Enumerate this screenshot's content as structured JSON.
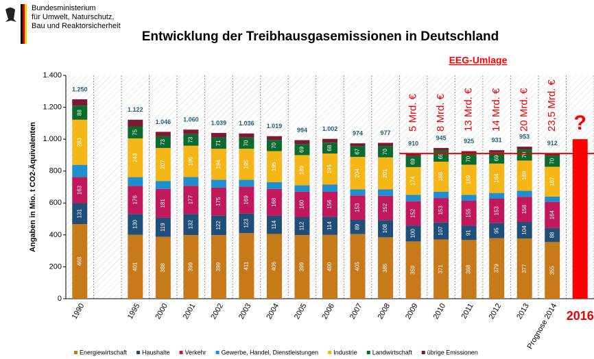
{
  "header": {
    "lines": [
      "Bundesministerium",
      "für Umwelt, Naturschutz,",
      "Bau und Reaktorsicherheit"
    ]
  },
  "chart_data": {
    "type": "stacked_bar",
    "title": "Entwicklung  der Treibhausgasemissionen in Deutschland",
    "y_label": "Angaben in Mio. t CO2-Äquivalenten",
    "annotation": "EEG-Umlage",
    "eeg_labels": [
      "5 Mrd. €",
      "8 Mrd. €",
      "13 Mrd. €",
      "14 Mrd. €",
      "20 Mrd. €",
      "23,5 Mrd. €"
    ],
    "categories": [
      "1990",
      null,
      "1995",
      "2000",
      "2001",
      "2002",
      "2003",
      "2004",
      "2005",
      "2006",
      "2007",
      "2008",
      "2009",
      "2010",
      "2011",
      "2012",
      "2013",
      "Prognose 2014",
      "2016"
    ],
    "series": [
      {
        "name": "Energiewirtschaft",
        "color": "#c77a1a",
        "labels": true,
        "values": [
          468,
          null,
          401,
          388,
          399,
          399,
          411,
          406,
          399,
          400,
          405,
          385,
          359,
          371,
          368,
          379,
          377,
          355,
          null
        ]
      },
      {
        "name": "Haushalte",
        "color": "#1f4e79",
        "labels": true,
        "values": [
          131,
          null,
          130,
          119,
          132,
          122,
          123,
          114,
          112,
          114,
          89,
          108,
          100,
          107,
          91,
          95,
          104,
          88,
          null
        ]
      },
      {
        "name": "Verkehr",
        "color": "#c0185a",
        "labels": true,
        "values": [
          163,
          null,
          176,
          181,
          177,
          175,
          169,
          168,
          160,
          156,
          153,
          152,
          152,
          153,
          155,
          153,
          158,
          164,
          null
        ]
      },
      {
        "name": "Gewerbe, Handel, Dienstleistungen",
        "color": "#1f8fcf",
        "labels": false,
        "values": [
          77,
          null,
          55,
          50,
          55,
          50,
          42,
          42,
          40,
          45,
          38,
          40,
          40,
          40,
          37,
          36,
          38,
          33,
          null
        ]
      },
      {
        "name": "Industrie",
        "color": "#f5b617",
        "labels": true,
        "values": [
          283,
          null,
          243,
          207,
          196,
          194,
          195,
          195,
          189,
          195,
          204,
          201,
          174,
          188,
          189,
          184,
          189,
          187,
          null
        ]
      },
      {
        "name": "Landwirtschaft",
        "color": "#0b6b2e",
        "labels": true,
        "values": [
          88,
          null,
          75,
          73,
          73,
          71,
          70,
          70,
          69,
          68,
          67,
          70,
          69,
          69,
          70,
          69,
          70,
          70,
          null
        ]
      },
      {
        "name": "übrige Emissionen",
        "color": "#7a1a33",
        "labels": false,
        "values": [
          40,
          null,
          42,
          28,
          28,
          28,
          26,
          24,
          25,
          24,
          18,
          21,
          16,
          17,
          15,
          15,
          17,
          15,
          null
        ]
      }
    ],
    "totals": {
      "values": [
        1250,
        null,
        1122,
        1046,
        1060,
        1039,
        1036,
        1019,
        994,
        1002,
        974,
        977,
        910,
        945,
        925,
        931,
        953,
        912,
        null
      ],
      "value_labels": [
        "1.250",
        null,
        "1.122",
        "1.046",
        "1.060",
        "1.039",
        "1.036",
        "1.019",
        "994",
        "1.002",
        "974",
        "977",
        "910",
        "945",
        "925",
        "931",
        "953",
        "912",
        null
      ]
    },
    "forecast": {
      "value": 1000,
      "color": "#ff0000",
      "label": "?"
    },
    "ylim": [
      0,
      1400
    ],
    "yticks": [
      0,
      200,
      400,
      600,
      800,
      {
        "value": 1000,
        "label": "1.000"
      },
      {
        "value": 1200,
        "label": "1.200"
      },
      {
        "value": 1400,
        "label": "1.400"
      }
    ]
  }
}
